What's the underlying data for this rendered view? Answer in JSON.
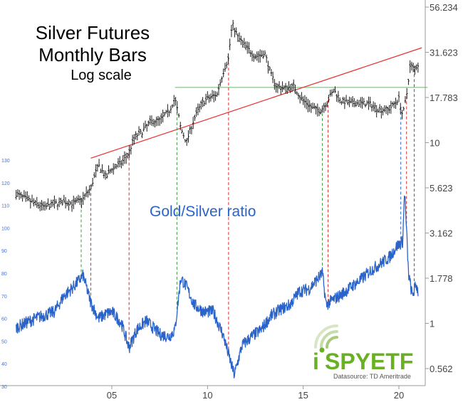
{
  "chart_data": {
    "type": "line",
    "title_lines": [
      "Silver Futures",
      "Monthly Bars"
    ],
    "subtitle": "Log scale",
    "series_label": "Gold/Silver ratio",
    "x_ticks": [
      "05",
      "10",
      "15",
      "20"
    ],
    "x_tick_values": [
      2005,
      2010,
      2015,
      2020
    ],
    "xlim": [
      2000,
      2021.5
    ],
    "y_right_ticks": [
      "56.234",
      "31.623",
      "17.783",
      "10",
      "5.623",
      "3.162",
      "1.778",
      "1",
      "0.562"
    ],
    "y_right_values": [
      56.234,
      31.623,
      17.783,
      10,
      5.623,
      3.162,
      1.778,
      1,
      0.562
    ],
    "y_right_scale": "log",
    "y_left_ticks": [
      "130",
      "120",
      "110",
      "100",
      "90",
      "80",
      "70",
      "60",
      "50",
      "40",
      "30"
    ],
    "y_left_values": [
      130,
      120,
      110,
      100,
      90,
      80,
      70,
      60,
      50,
      40,
      30
    ],
    "silver": {
      "x": [
        2000.0,
        2000.5,
        2001.0,
        2001.5,
        2002.0,
        2002.5,
        2003.0,
        2003.5,
        2003.9,
        2004.3,
        2004.7,
        2005.0,
        2005.5,
        2005.9,
        2006.2,
        2006.6,
        2007.0,
        2007.5,
        2008.0,
        2008.3,
        2008.6,
        2008.9,
        2009.3,
        2009.7,
        2010.0,
        2010.5,
        2010.9,
        2011.1,
        2011.3,
        2011.6,
        2012.0,
        2012.5,
        2013.0,
        2013.3,
        2013.6,
        2014.0,
        2014.5,
        2014.9,
        2015.5,
        2015.9,
        2016.2,
        2016.6,
        2017.0,
        2017.5,
        2018.0,
        2018.5,
        2019.0,
        2019.5,
        2020.0,
        2020.2,
        2020.4,
        2020.6,
        2020.8,
        2021.0
      ],
      "y": [
        5.2,
        4.9,
        4.6,
        4.4,
        4.6,
        4.7,
        4.6,
        4.9,
        5.6,
        7.5,
        6.4,
        7.2,
        7.7,
        8.8,
        10.8,
        11.5,
        13.0,
        13.3,
        15.0,
        17.5,
        12.0,
        10.0,
        13.5,
        16.5,
        17.5,
        18.5,
        26.0,
        29.5,
        45.5,
        38.0,
        34.0,
        30.0,
        31.0,
        24.0,
        20.5,
        20.0,
        20.5,
        17.5,
        15.5,
        15.0,
        16.5,
        19.5,
        17.0,
        16.5,
        16.6,
        16.3,
        15.2,
        15.4,
        17.5,
        14.0,
        18.0,
        27.0,
        25.5,
        27.0
      ],
      "resistance_line": {
        "x": [
          2003.9,
          2021.2
        ],
        "y": [
          8.2,
          33.5
        ]
      },
      "horizontal_line": {
        "x": [
          2008.3,
          2021.5
        ],
        "y": [
          20.2,
          20.2
        ]
      }
    },
    "gold_silver_ratio": {
      "x": [
        2000.0,
        2001.0,
        2002.0,
        2002.5,
        2003.0,
        2003.5,
        2003.9,
        2004.3,
        2004.7,
        2005.0,
        2005.5,
        2005.9,
        2006.3,
        2006.8,
        2007.5,
        2008.0,
        2008.3,
        2008.6,
        2008.9,
        2009.3,
        2009.8,
        2010.3,
        2010.8,
        2011.1,
        2011.4,
        2011.8,
        2012.3,
        2012.8,
        2013.3,
        2013.8,
        2014.3,
        2014.8,
        2015.3,
        2015.8,
        2016.0,
        2016.2,
        2016.5,
        2016.9,
        2017.5,
        2018.0,
        2018.5,
        2019.0,
        2019.5,
        2019.9,
        2020.2,
        2020.3,
        2020.5,
        2020.7,
        2020.9,
        2021.0
      ],
      "y": [
        56,
        60,
        63,
        70,
        74,
        79,
        67,
        60,
        62,
        63,
        58,
        47,
        55,
        59,
        53,
        52,
        55,
        78,
        74,
        66,
        63,
        63,
        53,
        44,
        35,
        48,
        52,
        55,
        61,
        64,
        66,
        72,
        73,
        78,
        80,
        66,
        68,
        70,
        74,
        77,
        81,
        84,
        87,
        92,
        94,
        117,
        80,
        70,
        75,
        72
      ]
    },
    "markers": {
      "green_x": [
        2003.4,
        2008.4,
        2016.0
      ],
      "red_x": [
        2003.9,
        2005.9,
        2011.1,
        2016.3,
        2020.4
      ],
      "blue_x": [
        2020.1,
        2020.8
      ]
    },
    "colors": {
      "silver_bars": "#1a1a1a",
      "ratio_line": "#2a63c9",
      "resistance_line": "#e53030",
      "horizontal_line": "#6eb46e",
      "green_markers": "#3f9a3f",
      "red_markers": "#d62b2b",
      "blue_markers": "#2a63c9",
      "axis_text": "#444444",
      "left_axis_text": "#4a72c8",
      "logo_green": "#6ab023"
    }
  },
  "logo": {
    "text_i": "i",
    "text_main": "SPYETF",
    "subtext": "Datasource: TD Ameritrade",
    "icon": "radar-dot-icon"
  }
}
